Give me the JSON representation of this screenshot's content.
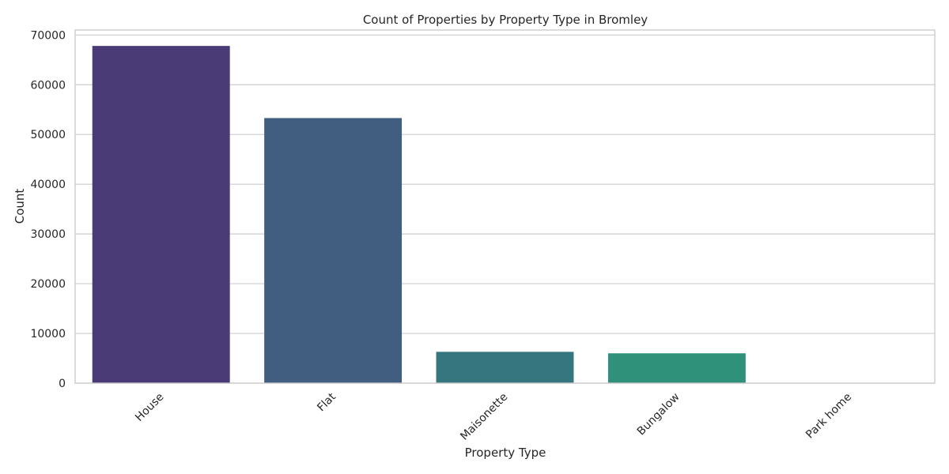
{
  "chart_data": {
    "type": "bar",
    "title": "Count of Properties by Property Type in Bromley",
    "xlabel": "Property Type",
    "ylabel": "Count",
    "categories": [
      "House",
      "Flat",
      "Maisonette",
      "Bungalow",
      "Park home"
    ],
    "values": [
      67800,
      53300,
      6300,
      6000,
      15
    ],
    "ylim": [
      0,
      71000
    ],
    "yticks": [
      0,
      10000,
      20000,
      30000,
      40000,
      50000,
      60000,
      70000
    ],
    "colors": [
      "#4a3a75",
      "#415e80",
      "#36767f",
      "#2f917a",
      "#4fb06d"
    ],
    "grid": true,
    "x_tick_rotation": -45
  }
}
